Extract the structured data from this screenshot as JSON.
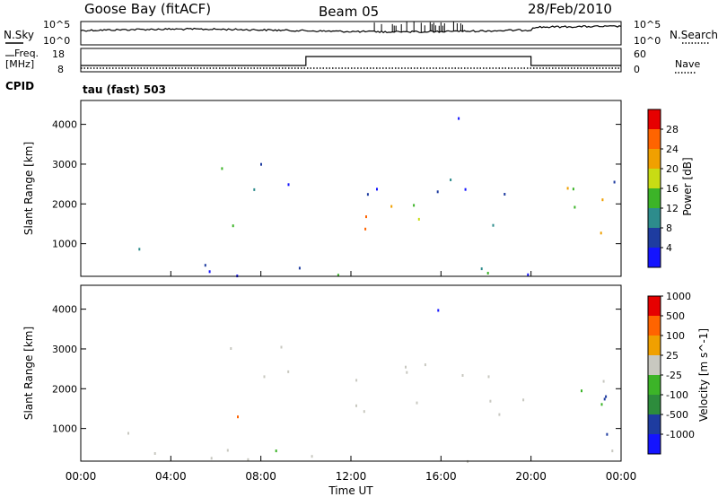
{
  "header": {
    "station": "Goose Bay (fitACF)",
    "beam": "Beam 05",
    "date": "28/Feb/2010"
  },
  "labels": {
    "nsky": "N.Sky",
    "nsearch": "N.Search",
    "freq": "Freq.",
    "freq_unit": "[MHz]",
    "nave": "Nave",
    "cpid": "CPID",
    "cpid_value": "tau (fast) 503",
    "time_axis": "Time UT"
  },
  "colors": {
    "power": [
      "#1414ff",
      "#1e3ca0",
      "#2d8c8c",
      "#3cb428",
      "#c8dc14",
      "#f0a000",
      "#ff6400",
      "#e60000"
    ],
    "velocity": [
      "#e60000",
      "#ff6400",
      "#f0a000",
      "#c8c8c0",
      "#3cb428",
      "#2d8c3c",
      "#1e3ca0",
      "#1414ff"
    ],
    "velocity_gray": "#c8c8c0"
  },
  "chart_data": [
    {
      "type": "line",
      "name": "noise-panel",
      "y_ticks_left": [
        "10^5",
        "10^0"
      ],
      "y_ticks_right": [
        "10^5",
        "10^0"
      ],
      "x": [
        "00:00",
        "04:00",
        "08:00",
        "12:00",
        "16:00",
        "20:00",
        "24:00"
      ]
    },
    {
      "type": "line",
      "name": "frequency-nave-panel",
      "y_ticks_left": [
        "18",
        "8"
      ],
      "y_ticks_right": [
        "60",
        "0"
      ],
      "freq_step": {
        "low_until_hour": 10,
        "high_until_hour": 20
      }
    },
    {
      "type": "heatmap",
      "name": "power",
      "ylabel": "Slant Range [km]",
      "y_ticks": [
        "1000",
        "2000",
        "3000",
        "4000"
      ],
      "ylim": [
        180,
        4600
      ],
      "colorbar_label": "Power [dB]",
      "colorbar_ticks": [
        "4",
        "8",
        "12",
        "16",
        "20",
        "24",
        "28"
      ]
    },
    {
      "type": "heatmap",
      "name": "velocity",
      "ylabel": "Slant Range [km]",
      "y_ticks": [
        "1000",
        "2000",
        "3000",
        "4000"
      ],
      "ylim": [
        180,
        4600
      ],
      "colorbar_label": "Velocity [m s^-1]",
      "colorbar_ticks": [
        "1000",
        "500",
        "100",
        "25",
        "-25",
        "-100",
        "-500",
        "-1000"
      ]
    }
  ],
  "x_ticks": [
    "00:00",
    "04:00",
    "08:00",
    "12:00",
    "16:00",
    "20:00",
    "00:00"
  ]
}
